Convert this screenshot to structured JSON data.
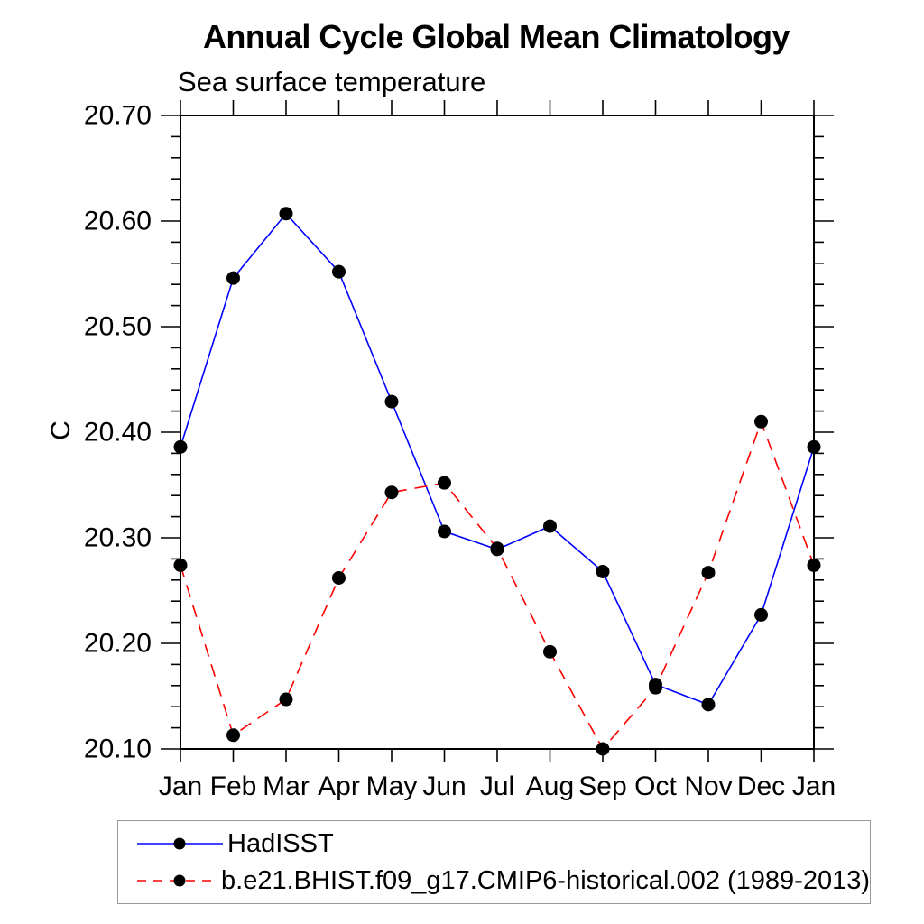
{
  "chart_data": {
    "type": "line",
    "title": "Annual Cycle Global Mean Climatology",
    "subtitle": "Sea surface temperature",
    "ylabel": "C",
    "xlabel": "",
    "grid": false,
    "legend_position": "bottom-left boxed",
    "categories": [
      "Jan",
      "Feb",
      "Mar",
      "Apr",
      "May",
      "Jun",
      "Jul",
      "Aug",
      "Sep",
      "Oct",
      "Nov",
      "Dec",
      "Jan"
    ],
    "ylim": [
      20.1,
      20.7
    ],
    "ytick_labels": [
      "20.10",
      "20.20",
      "20.30",
      "20.40",
      "20.50",
      "20.60",
      "20.70"
    ],
    "yticks": [
      20.1,
      20.2,
      20.3,
      20.4,
      20.5,
      20.6,
      20.7
    ],
    "yminor_step": 0.02,
    "axis_color": "#000000",
    "series": [
      {
        "name": "HadISST",
        "color": "#0000ff",
        "style": "solid",
        "marker": "filled-circle",
        "marker_color": "#000000",
        "values": [
          20.386,
          20.546,
          20.607,
          20.552,
          20.429,
          20.306,
          20.289,
          20.311,
          20.268,
          20.161,
          20.142,
          20.227,
          20.386
        ]
      },
      {
        "name": "b.e21.BHIST.f09_g17.CMIP6-historical.002 (1989-2013)",
        "color": "#ff0000",
        "style": "dashed",
        "marker": "filled-circle",
        "marker_color": "#000000",
        "values": [
          20.274,
          20.113,
          20.147,
          20.262,
          20.343,
          20.352,
          20.29,
          20.192,
          20.1,
          20.158,
          20.267,
          20.41,
          20.274
        ]
      }
    ]
  }
}
